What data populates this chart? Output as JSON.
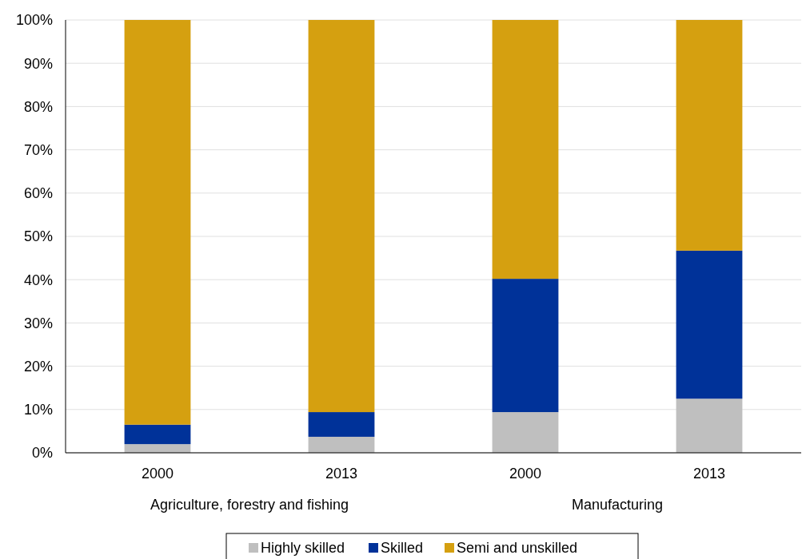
{
  "chart_data": {
    "type": "bar",
    "stacked": true,
    "categories": [
      "2000",
      "2013",
      "2000",
      "2013"
    ],
    "annotations": [
      "Agriculture, forestry and fishing",
      "Manufacturing"
    ],
    "series": [
      {
        "name": "Highly skilled",
        "color": "#bfbfbf",
        "values": [
          2.0,
          3.7,
          9.4,
          12.5
        ]
      },
      {
        "name": "Skilled",
        "color": "#003299",
        "values": [
          4.5,
          5.7,
          30.8,
          34.2
        ]
      },
      {
        "name": "Semi and unskilled",
        "color": "#d5a010",
        "values": [
          93.5,
          90.6,
          59.8,
          53.3
        ]
      }
    ],
    "ylim": [
      0,
      100
    ],
    "yticks": [
      {
        "value": 0,
        "label": "0%"
      },
      {
        "value": 10,
        "label": "10%"
      },
      {
        "value": 20,
        "label": "20%"
      },
      {
        "value": 30,
        "label": "30%"
      },
      {
        "value": 40,
        "label": "40%"
      },
      {
        "value": 50,
        "label": "50%"
      },
      {
        "value": 60,
        "label": "60%"
      },
      {
        "value": 70,
        "label": "70%"
      },
      {
        "value": 80,
        "label": "80%"
      },
      {
        "value": 90,
        "label": "90%"
      },
      {
        "value": 100,
        "label": "100%"
      }
    ],
    "grid": "y",
    "legend": "bottom"
  }
}
